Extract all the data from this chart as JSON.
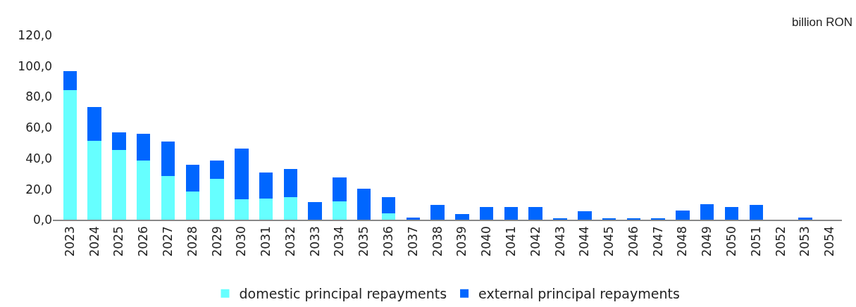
{
  "chart_data": {
    "type": "bar",
    "stacked": true,
    "legend": "bottom",
    "grid": false,
    "annotations": [
      "billion RON"
    ],
    "categories": [
      "2023",
      "2024",
      "2025",
      "2026",
      "2027",
      "2028",
      "2029",
      "2030",
      "2031",
      "2032",
      "2033",
      "2034",
      "2035",
      "2036",
      "2037",
      "2038",
      "2039",
      "2040",
      "2041",
      "2042",
      "2043",
      "2044",
      "2045",
      "2046",
      "2047",
      "2048",
      "2049",
      "2050",
      "2051",
      "2052",
      "2053",
      "2054"
    ],
    "series": [
      {
        "name": "domestic principal repayments",
        "color": "#66ffff",
        "values": [
          84.3,
          51.3,
          45.4,
          38.6,
          28.7,
          18.7,
          26.8,
          13.3,
          13.7,
          14.6,
          0,
          11.9,
          0,
          4.2,
          0,
          0,
          0,
          0,
          0,
          0,
          0,
          0,
          0,
          0,
          0,
          0,
          0,
          0,
          0,
          0,
          0,
          0
        ]
      },
      {
        "name": "external principal repayments",
        "color": "#0066ff",
        "values": [
          12.2,
          22.2,
          11.3,
          17.2,
          22.1,
          17.2,
          11.8,
          33.0,
          17.2,
          18.6,
          11.5,
          15.9,
          20.1,
          10.4,
          1.5,
          9.7,
          3.8,
          8.3,
          8.3,
          8.3,
          1.1,
          5.6,
          1.1,
          1.1,
          1.1,
          6.0,
          10.1,
          8.3,
          9.7,
          0,
          1.5,
          0
        ]
      }
    ],
    "ylim": [
      0,
      120
    ],
    "yticks": [
      {
        "value": 0,
        "label": "0,0"
      },
      {
        "value": 20,
        "label": "20,0"
      },
      {
        "value": 40,
        "label": "40,0"
      },
      {
        "value": 60,
        "label": "60,0"
      },
      {
        "value": 80,
        "label": "80,0"
      },
      {
        "value": 100,
        "label": "100,0"
      },
      {
        "value": 120,
        "label": "120,0"
      }
    ]
  }
}
